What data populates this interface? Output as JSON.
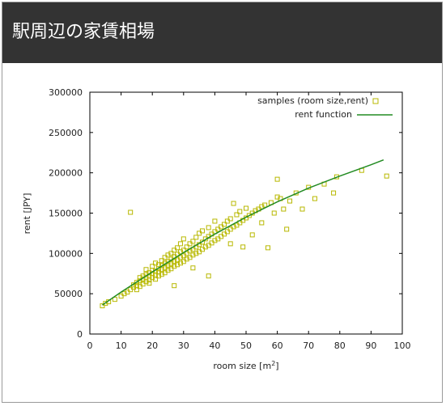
{
  "window": {
    "title": "駅周辺の家賃相場"
  },
  "chart_data": {
    "type": "scatter",
    "title": "",
    "xlabel": "room size [m",
    "xlabel_sup": "2",
    "xlabel_end": "]",
    "ylabel": "rent [JPY]",
    "xlim": [
      0,
      100
    ],
    "ylim": [
      0,
      300000
    ],
    "xticks": [
      0,
      10,
      20,
      30,
      40,
      50,
      60,
      70,
      80,
      90,
      100
    ],
    "yticks": [
      0,
      50000,
      100000,
      150000,
      200000,
      250000,
      300000
    ],
    "grid": false,
    "legend_position": "top-right",
    "legend": {
      "samples": "samples (room size,rent)",
      "function": "rent function"
    },
    "colors": {
      "samples": "#b8b800",
      "function": "#228b22",
      "header": "#333333"
    },
    "series": [
      {
        "name": "samples (room size,rent)",
        "kind": "points",
        "points": [
          [
            4,
            35000
          ],
          [
            5,
            38000
          ],
          [
            6,
            40000
          ],
          [
            8,
            43000
          ],
          [
            10,
            47000
          ],
          [
            11,
            50000
          ],
          [
            12,
            52000
          ],
          [
            13,
            55000
          ],
          [
            13,
            151000
          ],
          [
            14,
            58000
          ],
          [
            14,
            61000
          ],
          [
            15,
            60000
          ],
          [
            15,
            64000
          ],
          [
            15,
            55000
          ],
          [
            16,
            66000
          ],
          [
            16,
            70000
          ],
          [
            16,
            59000
          ],
          [
            17,
            62000
          ],
          [
            17,
            68000
          ],
          [
            17,
            72000
          ],
          [
            18,
            65000
          ],
          [
            18,
            70000
          ],
          [
            18,
            74000
          ],
          [
            18,
            80000
          ],
          [
            19,
            67000
          ],
          [
            19,
            72000
          ],
          [
            19,
            76000
          ],
          [
            19,
            63000
          ],
          [
            20,
            70000
          ],
          [
            20,
            75000
          ],
          [
            20,
            79000
          ],
          [
            20,
            84000
          ],
          [
            21,
            68000
          ],
          [
            21,
            73000
          ],
          [
            21,
            78000
          ],
          [
            21,
            88000
          ],
          [
            22,
            72000
          ],
          [
            22,
            77000
          ],
          [
            22,
            81000
          ],
          [
            22,
            86000
          ],
          [
            23,
            74000
          ],
          [
            23,
            80000
          ],
          [
            23,
            85000
          ],
          [
            23,
            91000
          ],
          [
            24,
            76000
          ],
          [
            24,
            82000
          ],
          [
            24,
            88000
          ],
          [
            24,
            95000
          ],
          [
            25,
            79000
          ],
          [
            25,
            85000
          ],
          [
            25,
            90000
          ],
          [
            25,
            98000
          ],
          [
            26,
            81000
          ],
          [
            26,
            87000
          ],
          [
            26,
            93000
          ],
          [
            26,
            100000
          ],
          [
            27,
            84000
          ],
          [
            27,
            90000
          ],
          [
            27,
            96000
          ],
          [
            27,
            104000
          ],
          [
            28,
            86000
          ],
          [
            28,
            92000
          ],
          [
            28,
            99000
          ],
          [
            28,
            107000
          ],
          [
            29,
            88000
          ],
          [
            29,
            95000
          ],
          [
            29,
            102000
          ],
          [
            29,
            112000
          ],
          [
            30,
            90000
          ],
          [
            30,
            97000
          ],
          [
            30,
            104000
          ],
          [
            30,
            118000
          ],
          [
            31,
            93000
          ],
          [
            31,
            100000
          ],
          [
            31,
            108000
          ],
          [
            32,
            95000
          ],
          [
            32,
            103000
          ],
          [
            32,
            112000
          ],
          [
            33,
            98000
          ],
          [
            33,
            105000
          ],
          [
            33,
            115000
          ],
          [
            34,
            100000
          ],
          [
            34,
            108000
          ],
          [
            34,
            120000
          ],
          [
            35,
            102000
          ],
          [
            35,
            111000
          ],
          [
            35,
            125000
          ],
          [
            36,
            105000
          ],
          [
            36,
            114000
          ],
          [
            36,
            128000
          ],
          [
            37,
            108000
          ],
          [
            37,
            118000
          ],
          [
            38,
            110000
          ],
          [
            38,
            121000
          ],
          [
            38,
            132000
          ],
          [
            39,
            113000
          ],
          [
            39,
            124000
          ],
          [
            40,
            116000
          ],
          [
            40,
            127000
          ],
          [
            40,
            140000
          ],
          [
            41,
            118000
          ],
          [
            41,
            130000
          ],
          [
            42,
            121000
          ],
          [
            42,
            133000
          ],
          [
            43,
            124000
          ],
          [
            43,
            136000
          ],
          [
            44,
            127000
          ],
          [
            44,
            140000
          ],
          [
            45,
            130000
          ],
          [
            45,
            143000
          ],
          [
            46,
            133000
          ],
          [
            46,
            162000
          ],
          [
            47,
            135000
          ],
          [
            47,
            148000
          ],
          [
            48,
            138000
          ],
          [
            48,
            152000
          ],
          [
            49,
            141000
          ],
          [
            49,
            108000
          ],
          [
            50,
            144000
          ],
          [
            50,
            156000
          ],
          [
            51,
            147000
          ],
          [
            52,
            150000
          ],
          [
            52,
            123000
          ],
          [
            53,
            153000
          ],
          [
            54,
            155000
          ],
          [
            55,
            158000
          ],
          [
            56,
            160000
          ],
          [
            57,
            107000
          ],
          [
            58,
            163000
          ],
          [
            59,
            150000
          ],
          [
            60,
            192000
          ],
          [
            60,
            170000
          ],
          [
            61,
            168000
          ],
          [
            62,
            155000
          ],
          [
            63,
            130000
          ],
          [
            64,
            165000
          ],
          [
            66,
            175000
          ],
          [
            68,
            155000
          ],
          [
            70,
            182000
          ],
          [
            72,
            168000
          ],
          [
            75,
            186000
          ],
          [
            78,
            175000
          ],
          [
            79,
            195000
          ],
          [
            87,
            203000
          ],
          [
            95,
            196000
          ],
          [
            38,
            72000
          ],
          [
            33,
            82000
          ],
          [
            27,
            60000
          ],
          [
            45,
            112000
          ],
          [
            55,
            138000
          ]
        ]
      },
      {
        "name": "rent function",
        "kind": "line",
        "points": [
          [
            4,
            36000
          ],
          [
            10,
            52000
          ],
          [
            20,
            77000
          ],
          [
            30,
            101000
          ],
          [
            40,
            124000
          ],
          [
            50,
            145000
          ],
          [
            60,
            164000
          ],
          [
            70,
            181000
          ],
          [
            80,
            196000
          ],
          [
            90,
            210000
          ],
          [
            94,
            216000
          ]
        ]
      }
    ]
  }
}
